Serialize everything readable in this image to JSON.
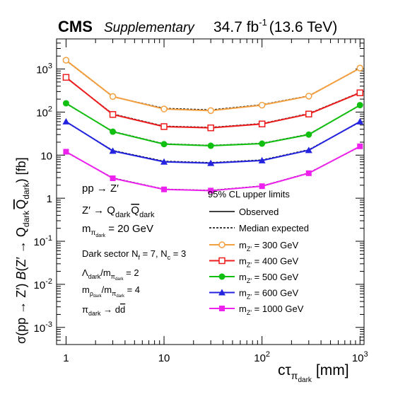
{
  "header": {
    "experiment": "CMS",
    "tag": "Supplementary",
    "lumi_value": "34.7 fb",
    "lumi_exp": "-1",
    "energy": "(13.6 TeV)"
  },
  "chart_data": {
    "type": "line",
    "x_scale": "log",
    "y_scale": "log",
    "xlim": [
      0.8,
      1100
    ],
    "ylim": [
      0.0004,
      5000
    ],
    "x_ticks": [
      {
        "value": 1,
        "label": "1"
      },
      {
        "value": 10,
        "label": "10"
      },
      {
        "value": 100,
        "label": "10",
        "exp": "2"
      },
      {
        "value": 1000,
        "label": "10",
        "exp": "3"
      }
    ],
    "y_ticks": [
      {
        "value": 0.001,
        "label": "10",
        "exp": "-3"
      },
      {
        "value": 0.01,
        "label": "10",
        "exp": "-2"
      },
      {
        "value": 0.1,
        "label": "10",
        "exp": "-1"
      },
      {
        "value": 1,
        "label": "1"
      },
      {
        "value": 10,
        "label": "10"
      },
      {
        "value": 100,
        "label": "10",
        "exp": "2"
      },
      {
        "value": 1000,
        "label": "10",
        "exp": "3"
      }
    ],
    "xlabel": {
      "main": "cτ",
      "sub": "π",
      "subsub": "dark",
      "unit": "[mm]"
    },
    "ylabel": {
      "p1": "σ(pp → Z′) ",
      "B": "B",
      "p2": "(Z′ → Q",
      "sub1": "dark",
      "qbar": "Q",
      "sub2": "dark",
      "p3": ") [fb]"
    },
    "x": [
      1,
      3,
      10,
      30,
      100,
      300,
      1000
    ],
    "series": [
      {
        "name": "300 GeV",
        "color": "#f5a040",
        "marker": "circle-open",
        "observed": [
          1600,
          230,
          118,
          108,
          145,
          235,
          1050
        ],
        "expected": [
          1580,
          228,
          122,
          112,
          148,
          238,
          1040
        ]
      },
      {
        "name": "400 GeV",
        "color": "#ee1c1c",
        "marker": "square-open",
        "observed": [
          640,
          88,
          46,
          43,
          53,
          90,
          280
        ],
        "expected": [
          630,
          90,
          47,
          44,
          54,
          92,
          285
        ]
      },
      {
        "name": "500 GeV",
        "color": "#11bf11",
        "marker": "circle-filled",
        "observed": [
          160,
          35,
          18,
          16.5,
          18.5,
          30,
          145
        ],
        "expected": [
          158,
          35.5,
          18.3,
          16.8,
          18.8,
          30.5,
          143
        ]
      },
      {
        "name": "600 GeV",
        "color": "#2424e0",
        "marker": "triangle-filled",
        "observed": [
          60,
          12.5,
          7,
          6.5,
          7.5,
          13,
          60
        ],
        "expected": [
          59,
          12.8,
          7.2,
          6.7,
          7.7,
          13.3,
          59
        ]
      },
      {
        "name": "1000 GeV",
        "color": "#ee22ee",
        "marker": "square-filled",
        "observed": [
          12,
          2.9,
          1.6,
          1.5,
          1.9,
          3.8,
          16
        ],
        "expected": [
          11.8,
          2.95,
          1.62,
          1.52,
          1.92,
          3.85,
          15.8
        ]
      }
    ]
  },
  "annotations": {
    "process": "pp → Z′",
    "decay_main": "Z′ → Q",
    "decay_sub": "dark",
    "decay_qbar": "Q",
    "decay_qbar_sub": "dark",
    "mass_m": "m",
    "mass_sub": "π",
    "mass_subsub": "dark",
    "mass_val": " = 20 GeV",
    "sector_text": "Dark sector N",
    "sector_nf_sub": "f",
    "sector_mid": " = 7,  N",
    "sector_nc_sub": "c",
    "sector_end": " = 3",
    "ratio1_a": "Λ",
    "ratio1_a_sub": "dark",
    "ratio1_b": "/m",
    "ratio1_b_sub": "π",
    "ratio1_b_subsub": "dark",
    "ratio1_val": " = 2",
    "ratio2_a": "m",
    "ratio2_a_sub": "ρ",
    "ratio2_a_subsub": "dark",
    "ratio2_b": "/m",
    "ratio2_b_sub": "π",
    "ratio2_b_subsub": "dark",
    "ratio2_val": " = 4",
    "decay2_a": "π",
    "decay2_a_sub": "dark",
    "decay2_b": " → d",
    "decay2_dbar": "d"
  },
  "legend": {
    "header": "95% CL upper limits",
    "observed": "Observed",
    "expected": "Median expected",
    "mass_prefix": "m",
    "mass_sub": "Z′",
    "mass_eq": " = "
  }
}
